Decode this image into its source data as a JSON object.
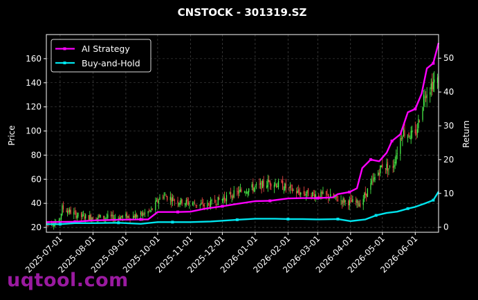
{
  "chart_data": {
    "type": "line",
    "title": "CNSTOCK - 301319.SZ",
    "ylabel": "Price",
    "y2label": "Return",
    "ylim": [
      16,
      180
    ],
    "y2lim": [
      -1.5,
      57
    ],
    "yticks": [
      20,
      40,
      60,
      80,
      100,
      120,
      140,
      160
    ],
    "y2ticks": [
      0,
      10,
      20,
      30,
      40,
      50
    ],
    "xlim": [
      "2025-06-18",
      "2026-06-23"
    ],
    "xticks": [
      "2025-07-01",
      "2025-08-01",
      "2025-09-01",
      "2025-10-01",
      "2025-11-01",
      "2025-12-01",
      "2026-01-01",
      "2026-02-01",
      "2026-03-01",
      "2026-04-01",
      "2026-05-01",
      "2026-06-01"
    ],
    "grid": true,
    "legend_position": "upper-left",
    "colors": {
      "ai": "#ff00ff",
      "bh": "#00e5ee",
      "up": "#4cff4c",
      "down": "#ff4a4a",
      "grid": "#555555"
    },
    "series": [
      {
        "name": "AI Strategy",
        "axis": "right",
        "x": [
          "2025-06-18",
          "2025-07-15",
          "2025-08-01",
          "2025-08-25",
          "2025-09-15",
          "2025-09-22",
          "2025-10-01",
          "2025-10-20",
          "2025-11-01",
          "2025-11-15",
          "2025-12-01",
          "2025-12-15",
          "2026-01-01",
          "2026-01-15",
          "2026-02-01",
          "2026-02-15",
          "2026-03-01",
          "2026-03-15",
          "2026-03-20",
          "2026-03-31",
          "2026-04-07",
          "2026-04-12",
          "2026-04-20",
          "2026-04-28",
          "2026-05-05",
          "2026-05-10",
          "2026-05-18",
          "2026-05-25",
          "2026-06-01",
          "2026-06-07",
          "2026-06-12",
          "2026-06-18",
          "2026-06-23"
        ],
        "values": [
          1.5,
          1.6,
          2.0,
          2.2,
          2.3,
          2.3,
          4.5,
          4.5,
          4.6,
          5.5,
          6.2,
          6.9,
          7.7,
          7.8,
          8.5,
          8.6,
          8.6,
          8.8,
          9.8,
          10.4,
          11.5,
          17.5,
          20.0,
          19.5,
          22.0,
          25.5,
          27.5,
          34.0,
          35.0,
          39.5,
          47.0,
          48.5,
          54.5
        ]
      },
      {
        "name": "Buy-and-Hold",
        "axis": "right",
        "x": [
          "2025-06-18",
          "2025-07-01",
          "2025-07-15",
          "2025-08-01",
          "2025-08-25",
          "2025-09-15",
          "2025-10-01",
          "2025-10-15",
          "2025-11-01",
          "2025-11-20",
          "2025-12-15",
          "2026-01-01",
          "2026-01-20",
          "2026-02-01",
          "2026-02-15",
          "2026-03-01",
          "2026-03-20",
          "2026-04-01",
          "2026-04-15",
          "2026-04-25",
          "2026-05-05",
          "2026-05-15",
          "2026-05-25",
          "2026-06-01",
          "2026-06-10",
          "2026-06-18",
          "2026-06-23"
        ],
        "values": [
          0.9,
          0.9,
          1.2,
          1.2,
          1.3,
          1.0,
          1.5,
          1.5,
          1.5,
          1.7,
          2.2,
          2.5,
          2.5,
          2.4,
          2.4,
          2.3,
          2.4,
          1.8,
          2.3,
          3.5,
          4.2,
          4.6,
          5.5,
          6.0,
          7.0,
          8.0,
          10.5
        ]
      }
    ],
    "candles": {
      "name": "Price",
      "axis": "left",
      "trend_x": [
        "2025-06-18",
        "2025-06-30",
        "2025-07-03",
        "2025-07-20",
        "2025-08-20",
        "2025-09-15",
        "2025-09-25",
        "2025-10-05",
        "2025-10-20",
        "2025-11-15",
        "2025-12-10",
        "2025-12-25",
        "2026-01-05",
        "2026-01-15",
        "2026-01-25",
        "2026-02-10",
        "2026-03-10",
        "2026-03-25",
        "2026-04-10",
        "2026-04-20",
        "2026-05-01",
        "2026-05-10",
        "2026-05-20",
        "2026-06-01",
        "2026-06-10",
        "2026-06-20",
        "2026-06-23"
      ],
      "trend_y": [
        24,
        24,
        36,
        29,
        28,
        30,
        34,
        47,
        42,
        38,
        47,
        52,
        54,
        58,
        55,
        49,
        46,
        42,
        40,
        55,
        72,
        68,
        100,
        95,
        132,
        142,
        140
      ],
      "volatility": 2.5
    }
  }
}
